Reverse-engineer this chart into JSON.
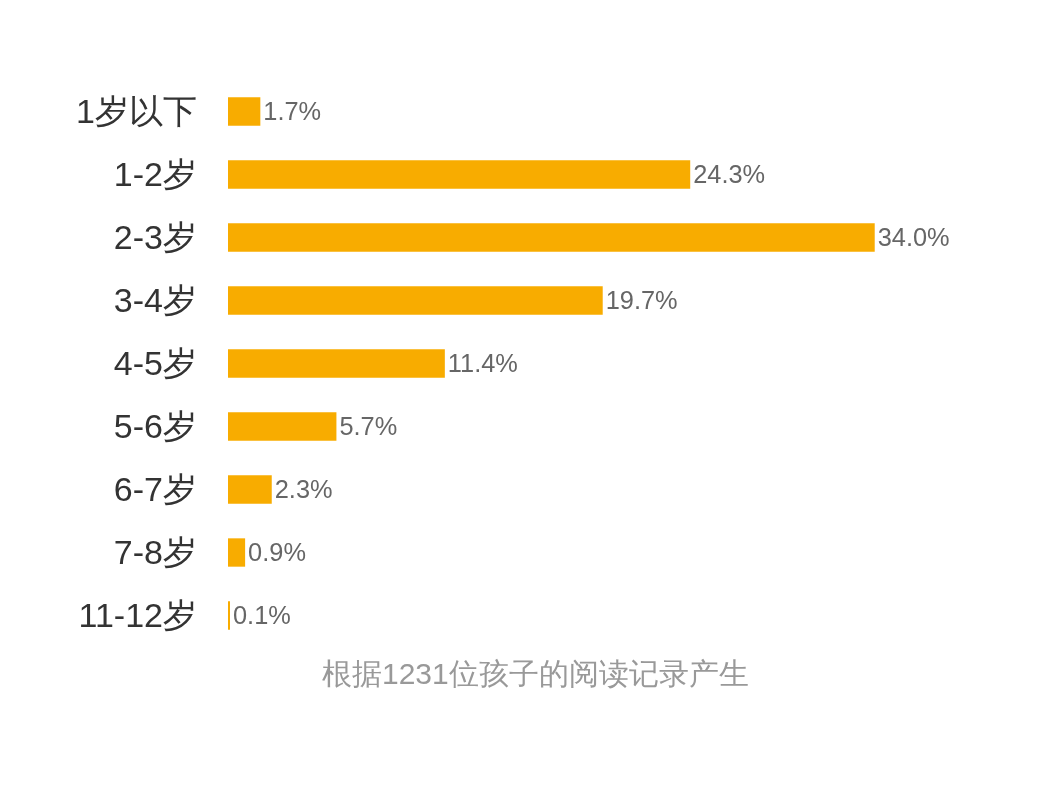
{
  "chart_data": {
    "type": "bar",
    "orientation": "horizontal",
    "categories": [
      "1岁以下",
      "1-2岁",
      "2-3岁",
      "3-4岁",
      "4-5岁",
      "5-6岁",
      "6-7岁",
      "7-8岁",
      "11-12岁"
    ],
    "values": [
      1.7,
      24.3,
      34.0,
      19.7,
      11.4,
      5.7,
      2.3,
      0.9,
      0.1
    ],
    "value_labels": [
      "1.7%",
      "24.3%",
      "34.0%",
      "19.7%",
      "11.4%",
      "5.7%",
      "2.3%",
      "0.9%",
      "0.1%"
    ],
    "color": "#f8ac00",
    "annotations": [
      "根据1231位孩子的阅读记录产生"
    ],
    "grid": false,
    "legend": false
  }
}
